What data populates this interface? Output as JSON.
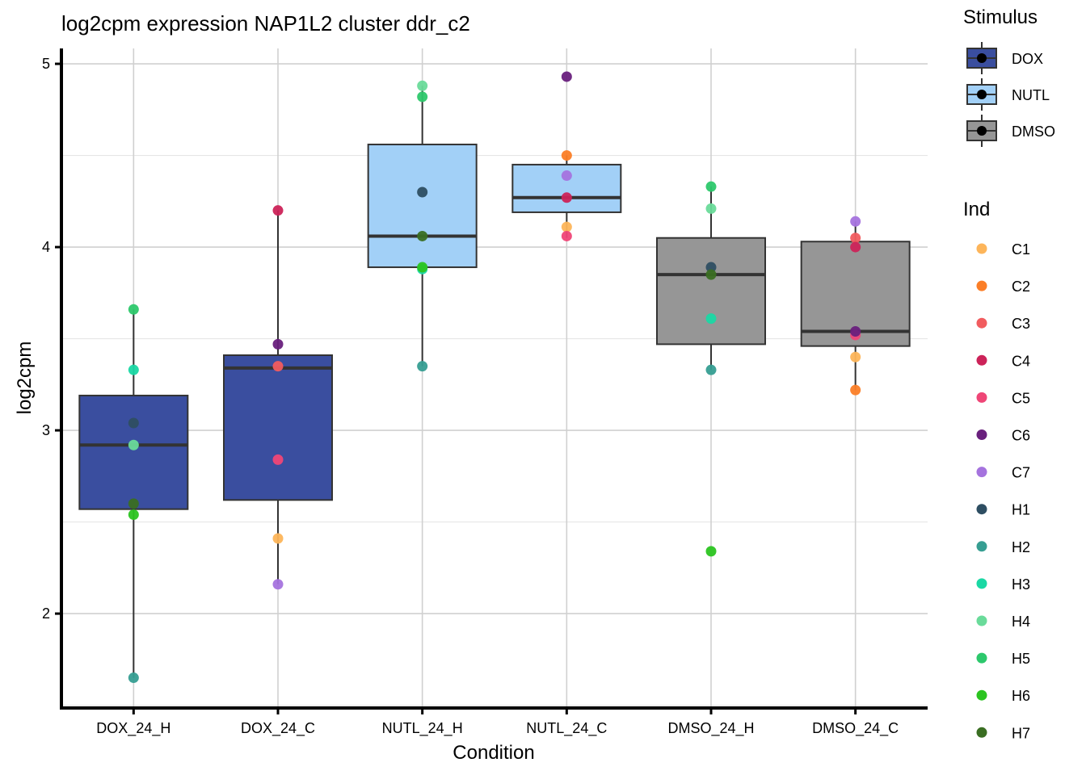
{
  "chart_data": {
    "type": "boxplot",
    "title": "log2cpm expression NAP1L2 cluster ddr_c2",
    "xlabel": "Condition",
    "ylabel": "log2cpm",
    "ylim": [
      1.485,
      5.084
    ],
    "yticks": [
      2,
      3,
      4,
      5
    ],
    "ytick_labels": [
      "2",
      "3",
      "4",
      "5"
    ],
    "grid": true,
    "categories": [
      "DOX_24_H",
      "DOX_24_C",
      "NUTL_24_H",
      "NUTL_24_C",
      "DMSO_24_H",
      "DMSO_24_C"
    ],
    "boxes": [
      {
        "condition": "DOX_24_H",
        "stimulus": "DOX",
        "q1": 2.57,
        "median": 2.92,
        "q3": 3.19,
        "whisker_low": 1.65,
        "whisker_high": 3.66,
        "points": [
          {
            "ind": "H5",
            "value": 3.66
          },
          {
            "ind": "H3",
            "value": 3.33
          },
          {
            "ind": "H1",
            "value": 3.04
          },
          {
            "ind": "H4",
            "value": 2.92
          },
          {
            "ind": "H7",
            "value": 2.6
          },
          {
            "ind": "H6",
            "value": 2.54
          },
          {
            "ind": "H2",
            "value": 1.65
          }
        ]
      },
      {
        "condition": "DOX_24_C",
        "stimulus": "DOX",
        "q1": 2.62,
        "median": 3.34,
        "q3": 3.41,
        "whisker_low": 2.16,
        "whisker_high": 4.2,
        "points": [
          {
            "ind": "C4",
            "value": 4.2
          },
          {
            "ind": "C6",
            "value": 3.47
          },
          {
            "ind": "C3",
            "value": 3.35
          },
          {
            "ind": "C5",
            "value": 2.84
          },
          {
            "ind": "C1",
            "value": 2.41
          },
          {
            "ind": "C7",
            "value": 2.16
          }
        ]
      },
      {
        "condition": "NUTL_24_H",
        "stimulus": "NUTL",
        "q1": 3.89,
        "median": 4.06,
        "q3": 4.56,
        "whisker_low": 3.35,
        "whisker_high": 4.88,
        "points": [
          {
            "ind": "H4",
            "value": 4.88
          },
          {
            "ind": "H5",
            "value": 4.82
          },
          {
            "ind": "H1",
            "value": 4.3
          },
          {
            "ind": "H7",
            "value": 4.06
          },
          {
            "ind": "H3",
            "value": 3.88
          },
          {
            "ind": "H6",
            "value": 3.89
          },
          {
            "ind": "H2",
            "value": 3.35
          }
        ]
      },
      {
        "condition": "NUTL_24_C",
        "stimulus": "NUTL",
        "q1": 4.19,
        "median": 4.27,
        "q3": 4.45,
        "whisker_low": 4.05,
        "whisker_high": 4.5,
        "points": [
          {
            "ind": "C6",
            "value": 4.93
          },
          {
            "ind": "C2",
            "value": 4.5
          },
          {
            "ind": "C7",
            "value": 4.39
          },
          {
            "ind": "C4",
            "value": 4.27
          },
          {
            "ind": "C1",
            "value": 4.11
          },
          {
            "ind": "C5",
            "value": 4.06
          }
        ]
      },
      {
        "condition": "DMSO_24_H",
        "stimulus": "DMSO",
        "q1": 3.47,
        "median": 3.85,
        "q3": 4.05,
        "whisker_low": 3.33,
        "whisker_high": 4.33,
        "points": [
          {
            "ind": "H5",
            "value": 4.33
          },
          {
            "ind": "H4",
            "value": 4.21
          },
          {
            "ind": "H1",
            "value": 3.89
          },
          {
            "ind": "H7",
            "value": 3.85
          },
          {
            "ind": "H3",
            "value": 3.61
          },
          {
            "ind": "H2",
            "value": 3.33
          },
          {
            "ind": "H6",
            "value": 2.34
          }
        ]
      },
      {
        "condition": "DMSO_24_C",
        "stimulus": "DMSO",
        "q1": 3.46,
        "median": 3.54,
        "q3": 4.03,
        "whisker_low": 3.22,
        "whisker_high": 4.14,
        "points": [
          {
            "ind": "C7",
            "value": 4.14
          },
          {
            "ind": "C3",
            "value": 4.05
          },
          {
            "ind": "C4",
            "value": 4.0
          },
          {
            "ind": "C5",
            "value": 3.52
          },
          {
            "ind": "C6",
            "value": 3.54
          },
          {
            "ind": "C1",
            "value": 3.4
          },
          {
            "ind": "C2",
            "value": 3.22
          }
        ]
      }
    ],
    "legend_stimulus": {
      "title": "Stimulus",
      "entries": [
        {
          "label": "DOX",
          "color": "#3A4E9F"
        },
        {
          "label": "NUTL",
          "color": "#A2D0F7"
        },
        {
          "label": "DMSO",
          "color": "#969696"
        }
      ]
    },
    "legend_ind": {
      "title": "Ind",
      "entries": [
        {
          "label": "C1",
          "color": "#FDB55A"
        },
        {
          "label": "C2",
          "color": "#FB7E27"
        },
        {
          "label": "C3",
          "color": "#F15C5F"
        },
        {
          "label": "C4",
          "color": "#CC2359"
        },
        {
          "label": "C5",
          "color": "#EF4677"
        },
        {
          "label": "C6",
          "color": "#69207D"
        },
        {
          "label": "C7",
          "color": "#A573DE"
        },
        {
          "label": "H1",
          "color": "#2E4E62"
        },
        {
          "label": "H2",
          "color": "#369E92"
        },
        {
          "label": "H3",
          "color": "#1AD8A4"
        },
        {
          "label": "H4",
          "color": "#6ADB9A"
        },
        {
          "label": "H5",
          "color": "#2DC86C"
        },
        {
          "label": "H6",
          "color": "#2BC420"
        },
        {
          "label": "H7",
          "color": "#3A6E22"
        }
      ]
    },
    "legend_placement": "right"
  }
}
